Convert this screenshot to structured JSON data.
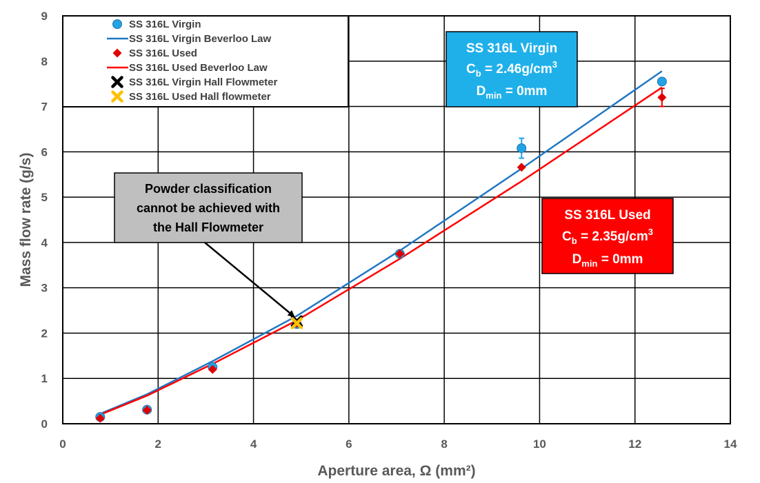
{
  "chart_data": {
    "type": "scatter",
    "xlabel": "Aperture area, Ω (mm²)",
    "ylabel": "Mass flow rate (g/s)",
    "xlim": [
      0,
      14
    ],
    "ylim": [
      0,
      9
    ],
    "xticks": [
      "0",
      "2",
      "4",
      "6",
      "8",
      "10",
      "12",
      "14"
    ],
    "yticks": [
      "0",
      "1",
      "2",
      "3",
      "4",
      "5",
      "6",
      "7",
      "8",
      "9"
    ],
    "grid": true,
    "legend_position": "top-left",
    "series": [
      {
        "name": "SS 316L Virgin",
        "kind": "points",
        "marker": "circle",
        "color": "#1fa4e4",
        "x": [
          0.785,
          1.767,
          3.142,
          4.909,
          7.069,
          9.621,
          12.566
        ],
        "y": [
          0.15,
          0.31,
          1.25,
          2.2,
          3.75,
          6.08,
          7.55
        ],
        "err": [
          0,
          0,
          0,
          0,
          0,
          0.22,
          0
        ]
      },
      {
        "name": "SS 316L Virgin Beverloo Law",
        "kind": "line",
        "color": "#1f77c4",
        "x": [
          0.785,
          1.767,
          3.142,
          4.909,
          7.069,
          9.621,
          12.566
        ],
        "y": [
          0.22,
          0.65,
          1.38,
          2.38,
          3.82,
          5.63,
          7.78
        ]
      },
      {
        "name": "SS 316L Used",
        "kind": "points",
        "marker": "diamond",
        "color": "#e00000",
        "x": [
          0.785,
          1.767,
          3.142,
          4.909,
          7.069,
          9.621,
          12.566
        ],
        "y": [
          0.12,
          0.3,
          1.2,
          2.22,
          3.75,
          5.66,
          7.2
        ],
        "err": [
          0,
          0,
          0,
          0,
          0,
          0,
          0.2
        ]
      },
      {
        "name": "SS 316L Used Beverloo Law",
        "kind": "line",
        "color": "#ff0000",
        "x": [
          0.785,
          1.767,
          3.142,
          4.909,
          7.069,
          9.621,
          12.566
        ],
        "y": [
          0.2,
          0.62,
          1.32,
          2.28,
          3.64,
          5.35,
          7.42
        ]
      },
      {
        "name": "SS 316L Virgin Hall Flowmeter",
        "kind": "points",
        "marker": "x",
        "color": "#000000",
        "x": [
          4.909
        ],
        "y": [
          2.26
        ]
      },
      {
        "name": "SS 316L Used Hall flowmeter",
        "kind": "points",
        "marker": "x",
        "color": "#ffc000",
        "x": [
          4.909
        ],
        "y": [
          2.22
        ]
      }
    ],
    "annotations": [
      {
        "id": "virgin",
        "color": "#1fb0ea",
        "line1": "SS 316L Virgin",
        "cb_prefix": "C",
        "cb_sub": "b",
        "cb_value": " = 2.46g/cm",
        "cb_sup": "3",
        "dmin_prefix": "D",
        "dmin_sub": "min",
        "dmin_value": " = 0mm"
      },
      {
        "id": "used",
        "color": "#ff0000",
        "line1": "SS 316L Used",
        "cb_prefix": "C",
        "cb_sub": "b",
        "cb_value": " = 2.35g/cm",
        "cb_sup": "3",
        "dmin_prefix": "D",
        "dmin_sub": "min",
        "dmin_value": " = 0mm"
      }
    ],
    "callout": {
      "lines": [
        "Powder classification",
        "cannot be achieved with",
        "the Hall Flowmeter"
      ],
      "color": "#bfbfbf",
      "arrow_to": [
        4.909,
        2.26
      ]
    }
  }
}
